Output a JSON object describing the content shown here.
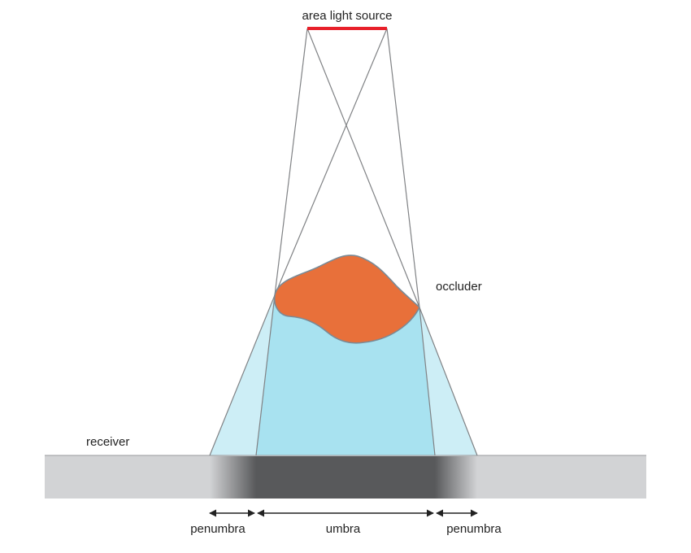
{
  "labels": {
    "light_source": "area light source",
    "occluder": "occluder",
    "receiver": "receiver",
    "penumbra_left": "penumbra",
    "umbra": "umbra",
    "penumbra_right": "penumbra"
  },
  "colors": {
    "light_source": "#e8202a",
    "occluder_fill": "#e8703a",
    "occluder_stroke": "#7a8a96",
    "umbra_volume": "#a8e2f0",
    "penumbra_volume": "#cdeef6",
    "receiver_surface": "#d2d3d5",
    "umbra_shadow": "#58595b",
    "rays": "#808285",
    "arrows": "#222222"
  }
}
